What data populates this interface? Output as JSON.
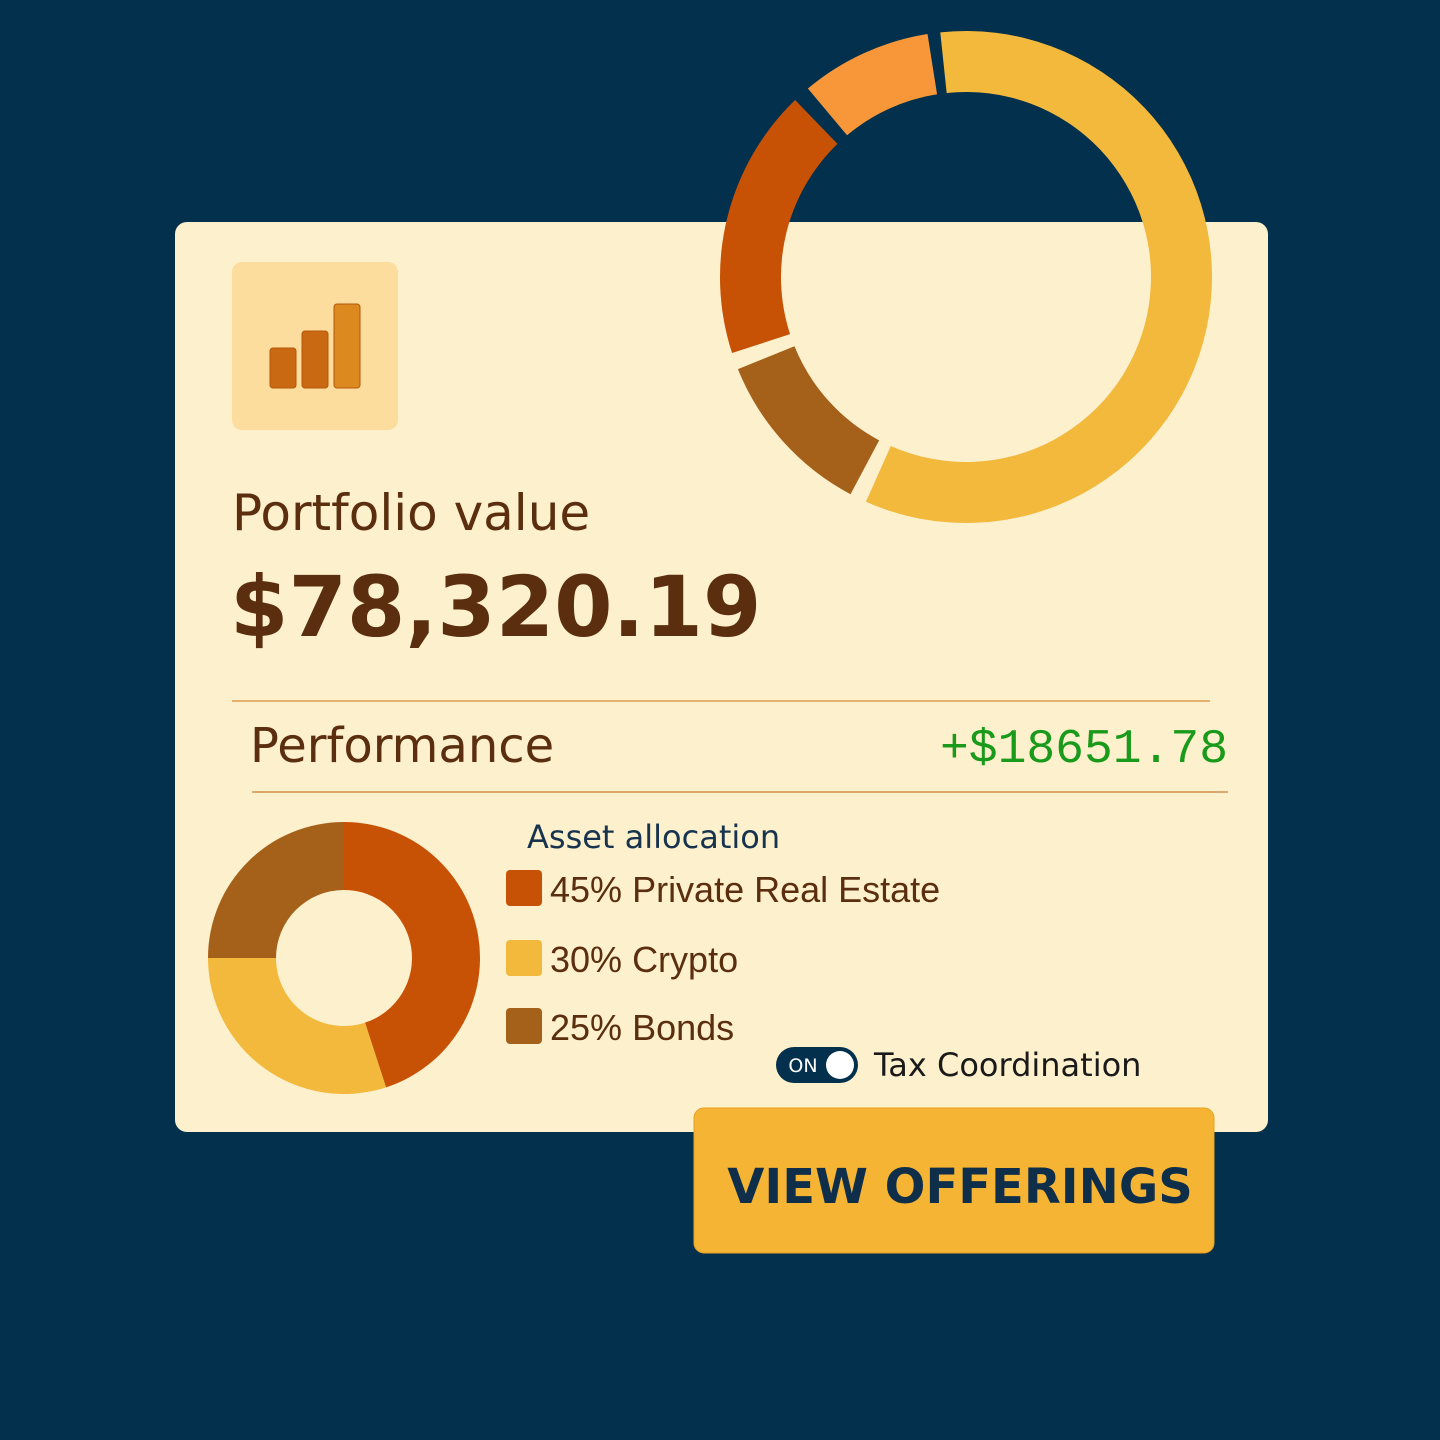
{
  "card": {
    "title": "Portfolio value",
    "value": "$78,320.19",
    "performance_label": "Performance",
    "performance_value": "+$18651.78"
  },
  "chart_data": {
    "type": "donut",
    "title": "Asset allocation",
    "categories": [
      "Private Real Estate",
      "Crypto",
      "Bonds"
    ],
    "values": [
      45,
      30,
      25
    ],
    "value_labels": [
      "45%",
      "30%",
      "25%"
    ],
    "colors": [
      "#c75205",
      "#f2b93c",
      "#a5601a"
    ]
  },
  "toggle": {
    "state": "ON",
    "label": "Tax Coordination"
  },
  "button": {
    "label": "VIEW OFFERINGS"
  }
}
